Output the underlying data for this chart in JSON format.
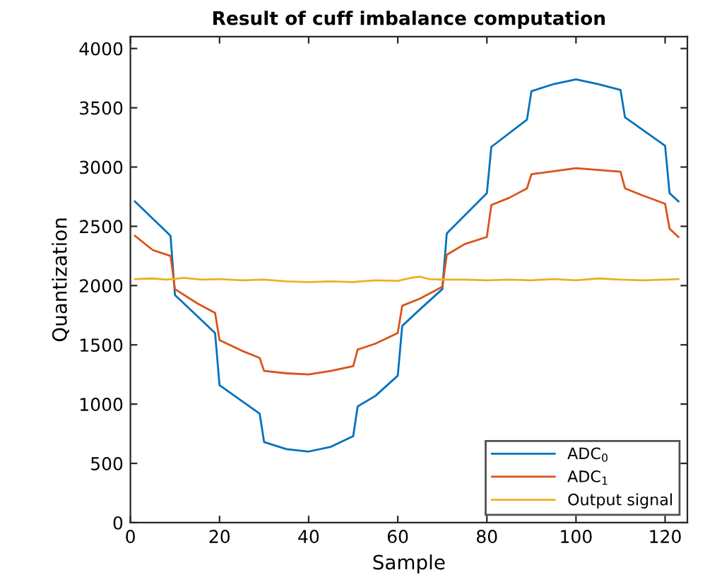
{
  "chart_data": {
    "type": "line",
    "title": "Result of cuff imbalance computation",
    "xlabel": "Sample",
    "ylabel": "Quantization",
    "xlim": [
      0,
      125
    ],
    "xticks": [
      0,
      20,
      40,
      60,
      80,
      100,
      120
    ],
    "ylim": [
      0,
      4100
    ],
    "yticks": [
      0,
      500,
      1000,
      1500,
      2000,
      2500,
      3000,
      3500,
      4000
    ],
    "grid": false,
    "legend": "bottom right",
    "line_style": "solid",
    "marker": "none",
    "series": [
      {
        "name": "ADC$_{0}$",
        "color": "#0072bd",
        "x": [
          1,
          9,
          10,
          19,
          20,
          29,
          30,
          35,
          40,
          45,
          50,
          51,
          55,
          60,
          61,
          65,
          70,
          71,
          80,
          81,
          89,
          90,
          95,
          100,
          105,
          110,
          111,
          120,
          121,
          123
        ],
        "values": [
          2710,
          2420,
          1920,
          1600,
          1160,
          920,
          680,
          620,
          600,
          640,
          730,
          980,
          1070,
          1240,
          1660,
          1800,
          1970,
          2440,
          2780,
          3170,
          3400,
          3640,
          3700,
          3740,
          3700,
          3650,
          3420,
          3180,
          2780,
          2710
        ]
      },
      {
        "name": "ADC$_{1}$",
        "color": "#d95319",
        "x": [
          1,
          5,
          9,
          10,
          15,
          19,
          20,
          25,
          29,
          30,
          35,
          40,
          45,
          50,
          51,
          55,
          60,
          61,
          65,
          70,
          71,
          75,
          80,
          81,
          85,
          89,
          90,
          100,
          110,
          111,
          115,
          120,
          121,
          123
        ],
        "values": [
          2420,
          2300,
          2250,
          1970,
          1850,
          1770,
          1540,
          1450,
          1390,
          1280,
          1260,
          1250,
          1280,
          1320,
          1460,
          1510,
          1600,
          1830,
          1890,
          1990,
          2260,
          2350,
          2410,
          2680,
          2740,
          2820,
          2940,
          2990,
          2960,
          2820,
          2760,
          2690,
          2480,
          2410
        ]
      },
      {
        "name": "Output signal",
        "color": "#edb120",
        "x": [
          1,
          5,
          8,
          12,
          16,
          20,
          25,
          30,
          35,
          40,
          45,
          50,
          55,
          60,
          63,
          65,
          67,
          70,
          75,
          80,
          85,
          90,
          95,
          100,
          105,
          110,
          115,
          120,
          123
        ],
        "values": [
          2055,
          2060,
          2050,
          2065,
          2050,
          2055,
          2045,
          2050,
          2035,
          2030,
          2035,
          2030,
          2045,
          2040,
          2065,
          2075,
          2055,
          2050,
          2050,
          2045,
          2050,
          2045,
          2055,
          2045,
          2060,
          2050,
          2045,
          2050,
          2055
        ]
      }
    ]
  }
}
